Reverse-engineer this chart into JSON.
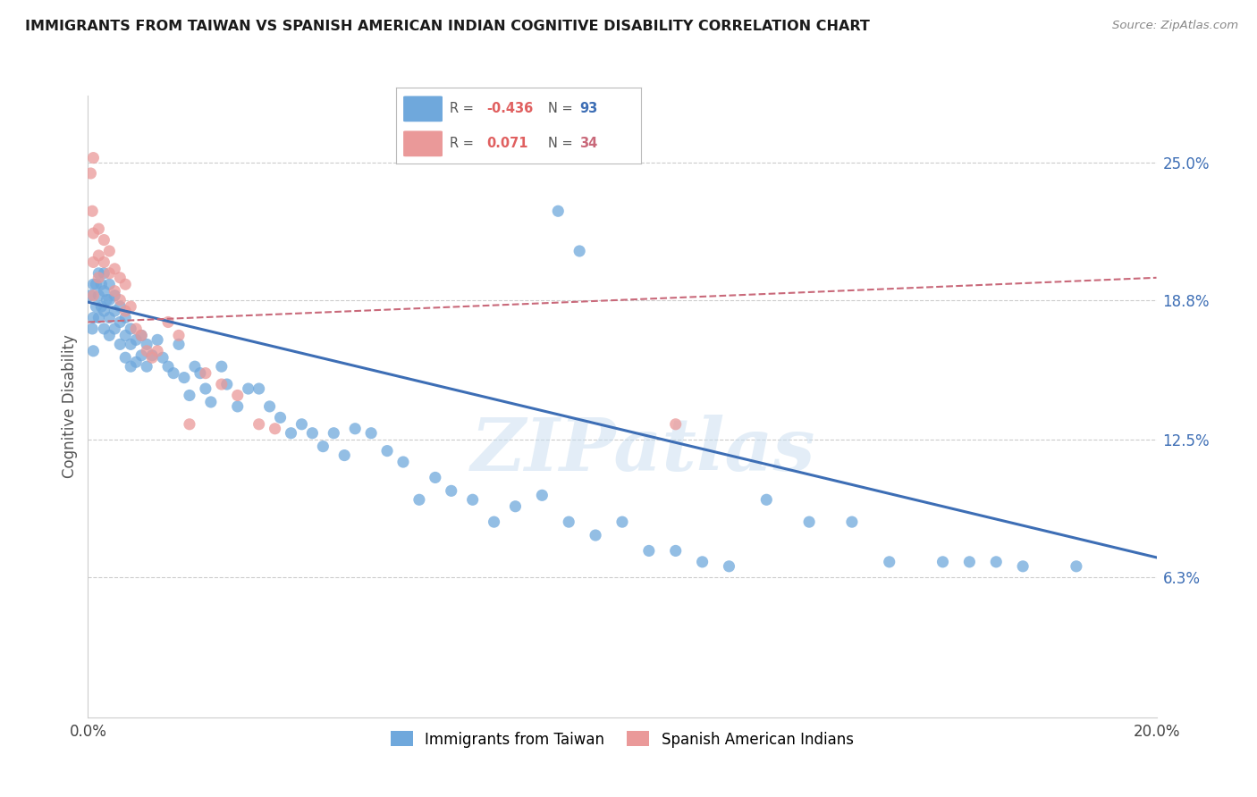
{
  "title": "IMMIGRANTS FROM TAIWAN VS SPANISH AMERICAN INDIAN COGNITIVE DISABILITY CORRELATION CHART",
  "source": "Source: ZipAtlas.com",
  "ylabel_label": "Cognitive Disability",
  "watermark": "ZIPatlas",
  "xlim": [
    0.0,
    0.2
  ],
  "ylim": [
    0.0,
    0.28
  ],
  "xtick_labels": [
    "0.0%",
    "20.0%"
  ],
  "ytick_labels": [
    "6.3%",
    "12.5%",
    "18.8%",
    "25.0%"
  ],
  "ytick_values": [
    0.063,
    0.125,
    0.188,
    0.25
  ],
  "xtick_values": [
    0.0,
    0.2
  ],
  "blue_color": "#6fa8dc",
  "pink_color": "#ea9999",
  "blue_line_color": "#3d6eb5",
  "pink_line_color": "#c9697a",
  "legend_R_blue": "-0.436",
  "legend_N_blue": "93",
  "legend_R_pink": "0.071",
  "legend_N_pink": "34",
  "blue_label": "Immigrants from Taiwan",
  "pink_label": "Spanish American Indians",
  "blue_scatter_x": [
    0.0005,
    0.0008,
    0.001,
    0.001,
    0.001,
    0.0015,
    0.0015,
    0.002,
    0.002,
    0.002,
    0.0025,
    0.0025,
    0.003,
    0.003,
    0.003,
    0.003,
    0.0035,
    0.004,
    0.004,
    0.004,
    0.004,
    0.005,
    0.005,
    0.005,
    0.006,
    0.006,
    0.006,
    0.007,
    0.007,
    0.007,
    0.008,
    0.008,
    0.008,
    0.009,
    0.009,
    0.01,
    0.01,
    0.011,
    0.011,
    0.012,
    0.013,
    0.014,
    0.015,
    0.016,
    0.017,
    0.018,
    0.019,
    0.02,
    0.021,
    0.022,
    0.023,
    0.025,
    0.026,
    0.028,
    0.03,
    0.032,
    0.034,
    0.036,
    0.038,
    0.04,
    0.042,
    0.044,
    0.046,
    0.048,
    0.05,
    0.053,
    0.056,
    0.059,
    0.062,
    0.065,
    0.068,
    0.072,
    0.076,
    0.08,
    0.085,
    0.09,
    0.095,
    0.1,
    0.105,
    0.11,
    0.115,
    0.12,
    0.127,
    0.135,
    0.143,
    0.15,
    0.16,
    0.17,
    0.088,
    0.092,
    0.165,
    0.175,
    0.185
  ],
  "blue_scatter_y": [
    0.19,
    0.175,
    0.195,
    0.18,
    0.165,
    0.195,
    0.185,
    0.2,
    0.19,
    0.18,
    0.195,
    0.185,
    0.2,
    0.192,
    0.183,
    0.175,
    0.188,
    0.195,
    0.188,
    0.18,
    0.172,
    0.19,
    0.183,
    0.175,
    0.185,
    0.178,
    0.168,
    0.18,
    0.172,
    0.162,
    0.175,
    0.168,
    0.158,
    0.17,
    0.16,
    0.172,
    0.163,
    0.168,
    0.158,
    0.163,
    0.17,
    0.162,
    0.158,
    0.155,
    0.168,
    0.153,
    0.145,
    0.158,
    0.155,
    0.148,
    0.142,
    0.158,
    0.15,
    0.14,
    0.148,
    0.148,
    0.14,
    0.135,
    0.128,
    0.132,
    0.128,
    0.122,
    0.128,
    0.118,
    0.13,
    0.128,
    0.12,
    0.115,
    0.098,
    0.108,
    0.102,
    0.098,
    0.088,
    0.095,
    0.1,
    0.088,
    0.082,
    0.088,
    0.075,
    0.075,
    0.07,
    0.068,
    0.098,
    0.088,
    0.088,
    0.07,
    0.07,
    0.07,
    0.228,
    0.21,
    0.07,
    0.068,
    0.068
  ],
  "pink_scatter_x": [
    0.0005,
    0.0008,
    0.001,
    0.001,
    0.002,
    0.002,
    0.002,
    0.003,
    0.003,
    0.004,
    0.004,
    0.005,
    0.005,
    0.006,
    0.006,
    0.007,
    0.007,
    0.008,
    0.009,
    0.01,
    0.011,
    0.012,
    0.013,
    0.015,
    0.017,
    0.019,
    0.022,
    0.025,
    0.028,
    0.032,
    0.035,
    0.11,
    0.001,
    0.001
  ],
  "pink_scatter_y": [
    0.245,
    0.228,
    0.218,
    0.205,
    0.22,
    0.208,
    0.198,
    0.215,
    0.205,
    0.21,
    0.2,
    0.202,
    0.192,
    0.198,
    0.188,
    0.195,
    0.183,
    0.185,
    0.175,
    0.172,
    0.165,
    0.162,
    0.165,
    0.178,
    0.172,
    0.132,
    0.155,
    0.15,
    0.145,
    0.132,
    0.13,
    0.132,
    0.252,
    0.19
  ],
  "blue_trend_x": [
    0.0,
    0.2
  ],
  "blue_trend_y": [
    0.187,
    0.072
  ],
  "pink_trend_x": [
    0.0,
    0.2
  ],
  "pink_trend_y": [
    0.178,
    0.198
  ],
  "grid_color": "#cccccc",
  "background_color": "#ffffff"
}
